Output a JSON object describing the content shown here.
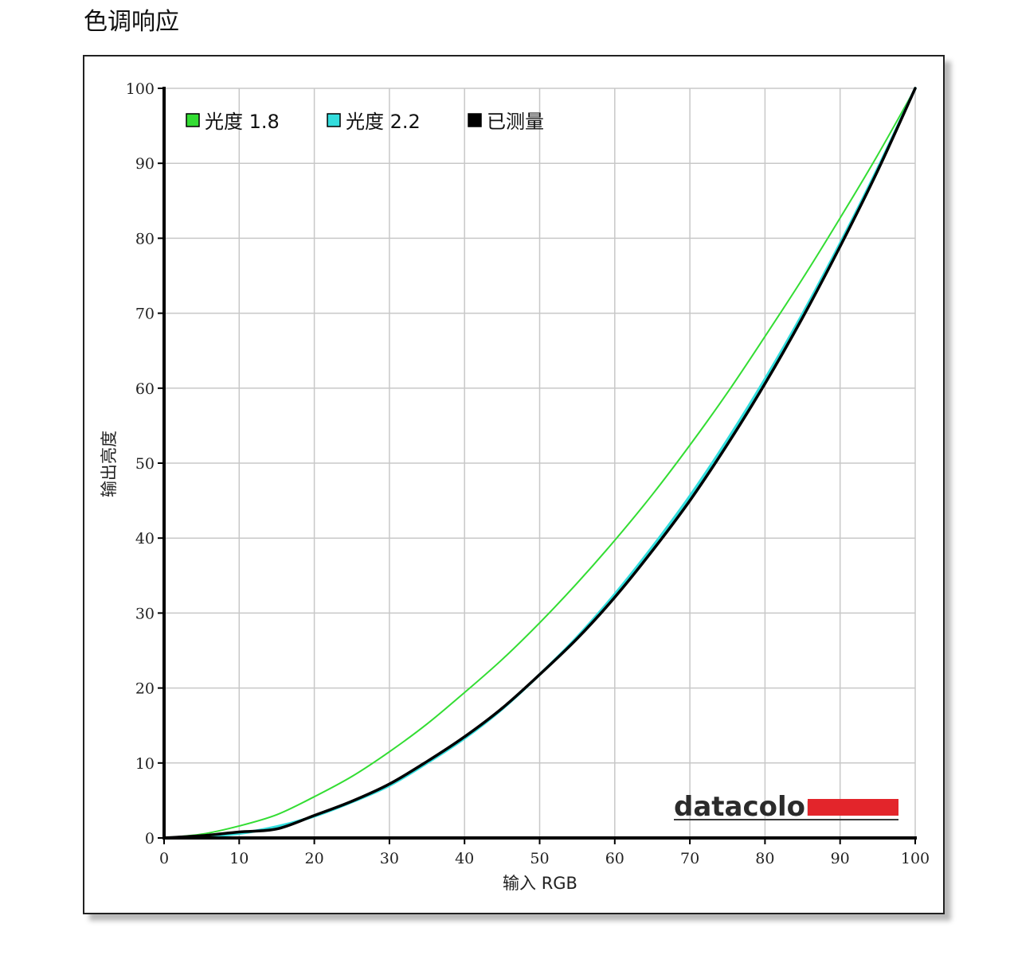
{
  "page": {
    "title": "色调响应"
  },
  "chart_data": {
    "type": "line",
    "xlabel": "输入 RGB",
    "ylabel": "输出亮度",
    "xlim": [
      0,
      100
    ],
    "ylim": [
      0,
      100
    ],
    "xticks": [
      0,
      10,
      20,
      30,
      40,
      50,
      60,
      70,
      80,
      90,
      100
    ],
    "yticks": [
      0,
      10,
      20,
      30,
      40,
      50,
      60,
      70,
      80,
      90,
      100
    ],
    "grid": true,
    "legend_position": "top-left",
    "x": [
      0,
      5,
      10,
      15,
      20,
      25,
      30,
      35,
      40,
      45,
      50,
      55,
      60,
      65,
      70,
      75,
      80,
      85,
      90,
      95,
      100
    ],
    "series": [
      {
        "name": "光度 1.8",
        "color": "#33dd33",
        "values": [
          0,
          0.5,
          1.6,
          3.1,
          5.5,
          8.2,
          11.5,
          15.2,
          19.4,
          23.8,
          28.7,
          34.0,
          39.7,
          45.8,
          52.4,
          59.4,
          66.9,
          74.6,
          82.7,
          91.1,
          100
        ]
      },
      {
        "name": "光度 2.2",
        "color": "#33dddd",
        "values": [
          0,
          0.2,
          0.6,
          1.5,
          2.9,
          4.8,
          7.0,
          10.0,
          13.3,
          17.2,
          21.8,
          26.8,
          32.5,
          38.8,
          45.6,
          53.1,
          61.2,
          69.9,
          79.3,
          89.3,
          100
        ]
      },
      {
        "name": "已测量",
        "color": "#000000",
        "values": [
          0,
          0.3,
          0.8,
          1.2,
          3.0,
          4.9,
          7.2,
          10.2,
          13.5,
          17.3,
          21.8,
          26.6,
          32.1,
          38.3,
          45.0,
          52.5,
          60.6,
          69.4,
          78.9,
          89.0,
          100
        ]
      }
    ],
    "watermark": "datacolor"
  }
}
